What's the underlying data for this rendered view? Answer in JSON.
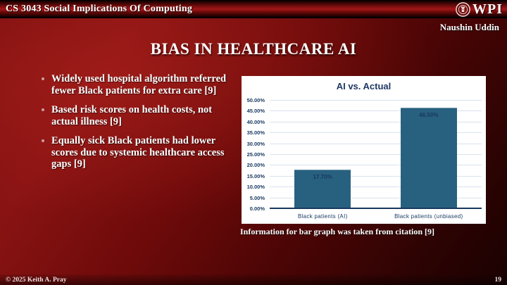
{
  "header": {
    "course_title": "CS 3043 Social Implications Of Computing",
    "logo_text": "WPI",
    "author": "Naushin Uddin"
  },
  "slide": {
    "title": "BIAS IN HEALTHCARE AI",
    "bullets": [
      "Widely used hospital algorithm referred fewer Black patients for extra care [9]",
      "Based risk scores on health costs, not actual illness [9]",
      "Equally sick Black patients had lower scores due to systemic healthcare access gaps [9]"
    ],
    "chart_caption": "Information for bar graph was taken from citation [9]"
  },
  "chart_data": {
    "type": "bar",
    "title": "AI vs. Actual",
    "categories": [
      "Black patients (AI)",
      "Black patients (unbiased)"
    ],
    "values": [
      17.7,
      46.5
    ],
    "value_labels": [
      "17.70%",
      "46.50%"
    ],
    "ylim": [
      0,
      50
    ],
    "ytick_step": 5,
    "ytick_labels": [
      "0.00%",
      "5.00%",
      "10.00%",
      "15.00%",
      "20.00%",
      "25.00%",
      "30.00%",
      "35.00%",
      "40.00%",
      "45.00%",
      "50.00%"
    ],
    "grid": true,
    "legend": "none",
    "bar_color": "#28617f",
    "label_color": "#17375e",
    "background": "#ffffff"
  },
  "footer": {
    "copyright": "© 2025 Keith A. Pray",
    "page_number": "19"
  },
  "colors": {
    "slide_red": "#891313",
    "topbar_highlight": "#a21717",
    "chart_navy": "#17375e",
    "bar_blue": "#28617f"
  }
}
